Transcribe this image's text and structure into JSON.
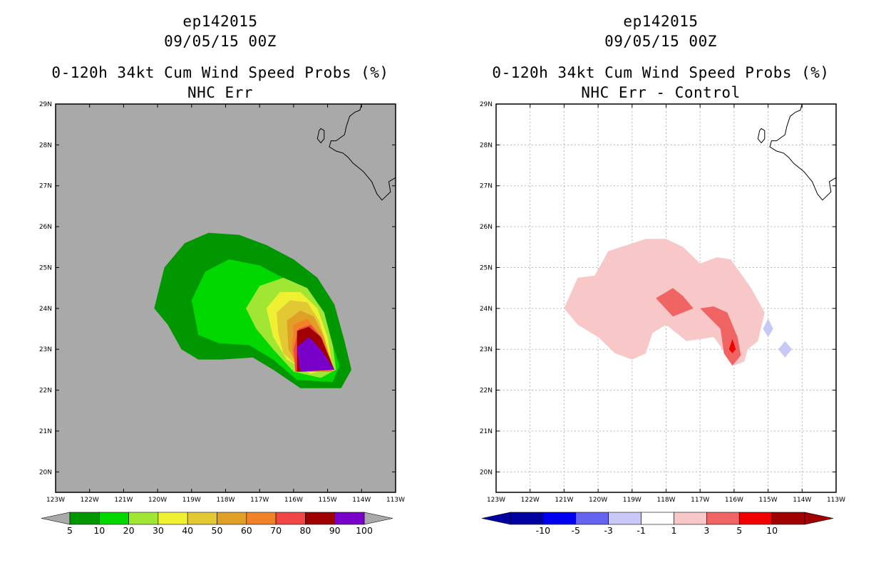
{
  "panels": [
    {
      "storm_id": "ep142015",
      "datetime": "09/05/15 00Z",
      "title": "0-120h 34kt Cum Wind Speed Probs (%)",
      "subtitle": "NHC Err"
    },
    {
      "storm_id": "ep142015",
      "datetime": "09/05/15 00Z",
      "title": "0-120h 34kt Cum Wind Speed Probs (%)",
      "subtitle": "NHC Err - Control"
    }
  ],
  "chart_data": [
    {
      "type": "filled_contour_map",
      "title": "0-120h 34kt Cum Wind Speed Probs (%)",
      "subtitle": "NHC Err",
      "storm": "ep142015",
      "valid": "09/05/15 00Z",
      "background_color": "#a9a9a9",
      "grid": false,
      "xlim": [
        -123,
        -113
      ],
      "ylim": [
        19.5,
        29
      ],
      "x_ticks": [
        "123W",
        "122W",
        "121W",
        "120W",
        "119W",
        "118W",
        "117W",
        "116W",
        "115W",
        "114W",
        "113W"
      ],
      "y_ticks": [
        "29N",
        "28N",
        "27N",
        "26N",
        "25N",
        "24N",
        "23N",
        "22N",
        "21N",
        "20N"
      ],
      "colorbar": {
        "labels": [
          "5",
          "10",
          "20",
          "30",
          "40",
          "50",
          "60",
          "70",
          "80",
          "90",
          "100"
        ],
        "colors": [
          "#009700",
          "#00d800",
          "#a0e632",
          "#f0f032",
          "#e2c832",
          "#e0a028",
          "#f08228",
          "#f04646",
          "#a00000",
          "#7800c8"
        ],
        "low_arrow_color": "#a9a9a9",
        "high_arrow_color": "#a9a9a9"
      },
      "contours": [
        {
          "level": 5,
          "color": "#009700",
          "points": [
            [
              -120.1,
              24
            ],
            [
              -119.8,
              25
            ],
            [
              -119.2,
              25.6
            ],
            [
              -118.5,
              25.85
            ],
            [
              -117.6,
              25.8
            ],
            [
              -116.8,
              25.55
            ],
            [
              -116,
              25.2
            ],
            [
              -115.3,
              24.75
            ],
            [
              -114.8,
              24.1
            ],
            [
              -114.5,
              23.2
            ],
            [
              -114.3,
              22.5
            ],
            [
              -114.6,
              22.05
            ],
            [
              -115.8,
              22.05
            ],
            [
              -116.6,
              22.5
            ],
            [
              -117.2,
              22.8
            ],
            [
              -118.1,
              22.75
            ],
            [
              -118.8,
              22.75
            ],
            [
              -119.3,
              23
            ],
            [
              -119.7,
              23.6
            ]
          ]
        },
        {
          "level": 10,
          "color": "#00d800",
          "points": [
            [
              -119,
              24.2
            ],
            [
              -118.6,
              24.9
            ],
            [
              -117.9,
              25.2
            ],
            [
              -117,
              25.05
            ],
            [
              -116.2,
              24.7
            ],
            [
              -115.5,
              24.3
            ],
            [
              -115,
              23.5
            ],
            [
              -114.65,
              22.6
            ],
            [
              -114.85,
              22.2
            ],
            [
              -115.9,
              22.25
            ],
            [
              -116.6,
              22.75
            ],
            [
              -117.3,
              23.1
            ],
            [
              -118.2,
              23.15
            ],
            [
              -118.8,
              23.35
            ]
          ]
        },
        {
          "level": 20,
          "color": "#a0e632",
          "points": [
            [
              -117.4,
              24
            ],
            [
              -117,
              24.55
            ],
            [
              -116.3,
              24.75
            ],
            [
              -115.6,
              24.5
            ],
            [
              -115.1,
              23.9
            ],
            [
              -114.85,
              23.1
            ],
            [
              -114.75,
              22.5
            ],
            [
              -115.2,
              22.3
            ],
            [
              -116,
              22.45
            ],
            [
              -116.6,
              23
            ],
            [
              -117.1,
              23.5
            ]
          ]
        },
        {
          "level": 30,
          "color": "#f0f032",
          "points": [
            [
              -116.8,
              24
            ],
            [
              -116.4,
              24.4
            ],
            [
              -115.8,
              24.4
            ],
            [
              -115.3,
              24
            ],
            [
              -115,
              23.3
            ],
            [
              -114.85,
              22.55
            ],
            [
              -115.5,
              22.4
            ],
            [
              -116.2,
              22.75
            ],
            [
              -116.6,
              23.3
            ]
          ]
        },
        {
          "level": 40,
          "color": "#e2c832",
          "points": [
            [
              -116.5,
              23.9
            ],
            [
              -116.1,
              24.2
            ],
            [
              -115.6,
              24.15
            ],
            [
              -115.25,
              23.7
            ],
            [
              -114.95,
              22.9
            ],
            [
              -114.85,
              22.5
            ],
            [
              -115.7,
              22.45
            ],
            [
              -116.3,
              22.9
            ],
            [
              -116.45,
              23.4
            ]
          ]
        },
        {
          "level": 50,
          "color": "#e0a028",
          "points": [
            [
              -116.2,
              23.7
            ],
            [
              -115.8,
              23.95
            ],
            [
              -115.4,
              23.8
            ],
            [
              -115.1,
              23.3
            ],
            [
              -114.85,
              22.5
            ],
            [
              -115.8,
              22.45
            ],
            [
              -116.15,
              23
            ]
          ]
        },
        {
          "level": 60,
          "color": "#f08228",
          "points": [
            [
              -116,
              23.6
            ],
            [
              -115.6,
              23.75
            ],
            [
              -115.2,
              23.35
            ],
            [
              -114.9,
              22.75
            ],
            [
              -114.85,
              22.45
            ],
            [
              -115.9,
              22.45
            ],
            [
              -116.05,
              23
            ]
          ]
        },
        {
          "level": 70,
          "color": "#f04646",
          "points": [
            [
              -115.85,
              23.5
            ],
            [
              -115.5,
              23.6
            ],
            [
              -115.15,
              23.25
            ],
            [
              -114.85,
              22.55
            ],
            [
              -115.95,
              22.45
            ],
            [
              -116.0,
              23
            ]
          ]
        },
        {
          "level": 80,
          "color": "#a00000",
          "points": [
            [
              -115.9,
              23.45
            ],
            [
              -115.55,
              23.55
            ],
            [
              -115.2,
              23.3
            ],
            [
              -114.8,
              22.5
            ],
            [
              -115.9,
              22.45
            ]
          ]
        },
        {
          "level": 90,
          "color": "#7800c8",
          "points": [
            [
              -115.9,
              23.05
            ],
            [
              -115.55,
              23.3
            ],
            [
              -115.2,
              23
            ],
            [
              -114.8,
              22.5
            ],
            [
              -115.8,
              22.45
            ]
          ]
        }
      ]
    },
    {
      "type": "filled_contour_map",
      "title": "0-120h 34kt Cum Wind Speed Probs (%)",
      "subtitle": "NHC Err - Control",
      "storm": "ep142015",
      "valid": "09/05/15 00Z",
      "background_color": "#ffffff",
      "grid": true,
      "xlim": [
        -123,
        -113
      ],
      "ylim": [
        19.5,
        29
      ],
      "x_ticks": [
        "123W",
        "122W",
        "121W",
        "120W",
        "119W",
        "118W",
        "117W",
        "116W",
        "115W",
        "114W",
        "113W"
      ],
      "y_ticks": [
        "29N",
        "28N",
        "27N",
        "26N",
        "25N",
        "24N",
        "23N",
        "22N",
        "21N",
        "20N"
      ],
      "colorbar": {
        "labels": [
          "-10",
          "-5",
          "-3",
          "-1",
          "1",
          "3",
          "5",
          "10"
        ],
        "colors": [
          "#0000a0",
          "#0000f0",
          "#6464f0",
          "#c8c8f8",
          "#ffffff",
          "#f8c8c8",
          "#f06464",
          "#f00000",
          "#a00000"
        ],
        "low_arrow_color": "#0000a0",
        "high_arrow_color": "#a00000"
      },
      "contours": [
        {
          "level": 1,
          "color": "#f8c8c8",
          "points": [
            [
              -121,
              24
            ],
            [
              -120.6,
              24.75
            ],
            [
              -120.1,
              24.8
            ],
            [
              -119.7,
              25.4
            ],
            [
              -118.6,
              25.7
            ],
            [
              -118,
              25.7
            ],
            [
              -117.5,
              25.5
            ],
            [
              -117,
              25.1
            ],
            [
              -116.5,
              25.25
            ],
            [
              -116.1,
              25.2
            ],
            [
              -115.5,
              24.5
            ],
            [
              -115.1,
              23.9
            ],
            [
              -115.3,
              23.2
            ],
            [
              -115.6,
              23
            ],
            [
              -115.7,
              22.7
            ],
            [
              -116,
              22.6
            ],
            [
              -116.6,
              23.3
            ],
            [
              -117.4,
              23.2
            ],
            [
              -118,
              23.6
            ],
            [
              -118.4,
              23.4
            ],
            [
              -118.6,
              22.9
            ],
            [
              -119,
              22.75
            ],
            [
              -119.5,
              22.9
            ],
            [
              -120,
              23.3
            ],
            [
              -120.6,
              23.6
            ]
          ]
        },
        {
          "level": 3,
          "color": "#f06464",
          "points": [
            [
              -118.3,
              24.25
            ],
            [
              -117.8,
              24.5
            ],
            [
              -117.5,
              24.3
            ],
            [
              -117.2,
              24.0
            ],
            [
              -117.8,
              23.8
            ]
          ]
        },
        {
          "level": 3,
          "color": "#f06464",
          "points": [
            [
              -117,
              24
            ],
            [
              -116.6,
              24.05
            ],
            [
              -116.2,
              23.9
            ],
            [
              -115.9,
              23.3
            ],
            [
              -115.8,
              22.85
            ],
            [
              -116.05,
              22.6
            ],
            [
              -116.3,
              22.9
            ],
            [
              -116.4,
              23.5
            ]
          ]
        },
        {
          "level": 5,
          "color": "#f00000",
          "points": [
            [
              -116.05,
              23.25
            ],
            [
              -115.95,
              23
            ],
            [
              -116.05,
              22.9
            ],
            [
              -116.15,
              23
            ]
          ]
        },
        {
          "level": -1,
          "color": "#c8c8f8",
          "points": [
            [
              -115,
              23.75
            ],
            [
              -114.85,
              23.5
            ],
            [
              -115,
              23.3
            ],
            [
              -115.15,
              23.5
            ]
          ]
        },
        {
          "level": -1,
          "color": "#c8c8f8",
          "points": [
            [
              -114.5,
              23.2
            ],
            [
              -114.3,
              23
            ],
            [
              -114.5,
              22.8
            ],
            [
              -114.7,
              23
            ]
          ]
        }
      ]
    }
  ],
  "coastline": {
    "mainland": [
      [
        -114.0,
        29.0
      ],
      [
        -114.05,
        28.85
      ],
      [
        -114.2,
        28.8
      ],
      [
        -114.35,
        28.7
      ],
      [
        -114.45,
        28.45
      ],
      [
        -114.5,
        28.25
      ],
      [
        -114.75,
        28.1
      ],
      [
        -114.9,
        28.1
      ],
      [
        -114.95,
        27.95
      ],
      [
        -114.75,
        27.85
      ],
      [
        -114.55,
        27.8
      ],
      [
        -114.4,
        27.7
      ],
      [
        -114.25,
        27.55
      ],
      [
        -113.95,
        27.35
      ],
      [
        -113.7,
        27.1
      ],
      [
        -113.55,
        26.8
      ],
      [
        -113.4,
        26.65
      ],
      [
        -113.15,
        26.85
      ],
      [
        -113.2,
        27.1
      ],
      [
        -113.0,
        27.2
      ]
    ],
    "cedros_island": [
      [
        -115.2,
        28.4
      ],
      [
        -115.1,
        28.35
      ],
      [
        -115.1,
        28.15
      ],
      [
        -115.2,
        28.05
      ],
      [
        -115.3,
        28.15
      ],
      [
        -115.25,
        28.35
      ]
    ]
  }
}
